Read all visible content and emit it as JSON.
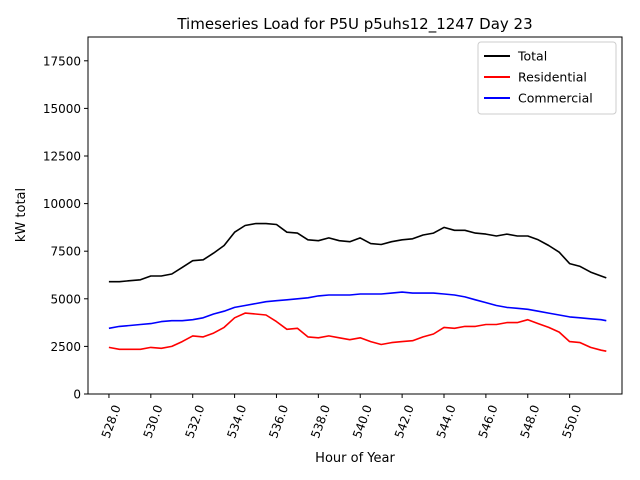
{
  "chart_data": {
    "type": "line",
    "title": "Timeseries Load for P5U p5uhs12_1247  Day 23",
    "xlabel": "Hour of Year",
    "ylabel": "kW total",
    "xlim": [
      527.0,
      552.5
    ],
    "ylim": [
      0,
      18750
    ],
    "xticks": [
      528.0,
      530.0,
      532.0,
      534.0,
      536.0,
      538.0,
      540.0,
      542.0,
      544.0,
      546.0,
      548.0,
      550.0
    ],
    "xtick_labels": [
      "528.0",
      "530.0",
      "532.0",
      "534.0",
      "536.0",
      "538.0",
      "540.0",
      "542.0",
      "544.0",
      "546.0",
      "548.0",
      "550.0"
    ],
    "yticks": [
      0,
      2500,
      5000,
      7500,
      10000,
      12500,
      15000,
      17500
    ],
    "ytick_labels": [
      "0",
      "2500",
      "5000",
      "7500",
      "10000",
      "12500",
      "15000",
      "17500"
    ],
    "legend_position": "top-right",
    "x": [
      528.0,
      528.5,
      529.0,
      529.5,
      530.0,
      530.5,
      531.0,
      531.5,
      532.0,
      532.5,
      533.0,
      533.5,
      534.0,
      534.5,
      535.0,
      535.5,
      536.0,
      536.5,
      537.0,
      537.5,
      538.0,
      538.5,
      539.0,
      539.5,
      540.0,
      540.5,
      541.0,
      541.5,
      542.0,
      542.5,
      543.0,
      543.5,
      544.0,
      544.5,
      545.0,
      545.5,
      546.0,
      546.5,
      547.0,
      547.5,
      548.0,
      548.5,
      549.0,
      549.5,
      550.0,
      550.5,
      551.0,
      551.5,
      551.75
    ],
    "series": [
      {
        "name": "Total",
        "color": "#000000",
        "values": [
          5900,
          5900,
          5950,
          6000,
          6200,
          6200,
          6300,
          6650,
          7000,
          7050,
          7400,
          7800,
          8500,
          8850,
          8950,
          8950,
          8900,
          8500,
          8450,
          8100,
          8050,
          8200,
          8050,
          8000,
          8200,
          7900,
          7850,
          8000,
          8100,
          8150,
          8350,
          8450,
          8750,
          8600,
          8600,
          8450,
          8400,
          8300,
          8400,
          8300,
          8300,
          8100,
          7800,
          7450,
          6850,
          6700,
          6400,
          6200,
          6100
        ]
      },
      {
        "name": "Residential",
        "color": "#ff0000",
        "values": [
          2450,
          2350,
          2350,
          2350,
          2450,
          2400,
          2500,
          2750,
          3050,
          3000,
          3200,
          3500,
          4000,
          4250,
          4200,
          4150,
          3800,
          3400,
          3450,
          3000,
          2950,
          3050,
          2950,
          2850,
          2950,
          2750,
          2600,
          2700,
          2750,
          2800,
          3000,
          3150,
          3500,
          3450,
          3550,
          3550,
          3650,
          3650,
          3750,
          3750,
          3900,
          3700,
          3500,
          3250,
          2750,
          2700,
          2450,
          2300,
          2250
        ]
      },
      {
        "name": "Commercial",
        "color": "#0000ff",
        "values": [
          3450,
          3550,
          3600,
          3650,
          3700,
          3800,
          3850,
          3850,
          3900,
          4000,
          4200,
          4350,
          4550,
          4650,
          4750,
          4850,
          4900,
          4950,
          5000,
          5050,
          5150,
          5200,
          5200,
          5200,
          5250,
          5250,
          5250,
          5300,
          5350,
          5300,
          5300,
          5300,
          5250,
          5200,
          5100,
          4950,
          4800,
          4650,
          4550,
          4500,
          4450,
          4350,
          4250,
          4150,
          4050,
          4000,
          3950,
          3900,
          3850
        ]
      }
    ]
  }
}
